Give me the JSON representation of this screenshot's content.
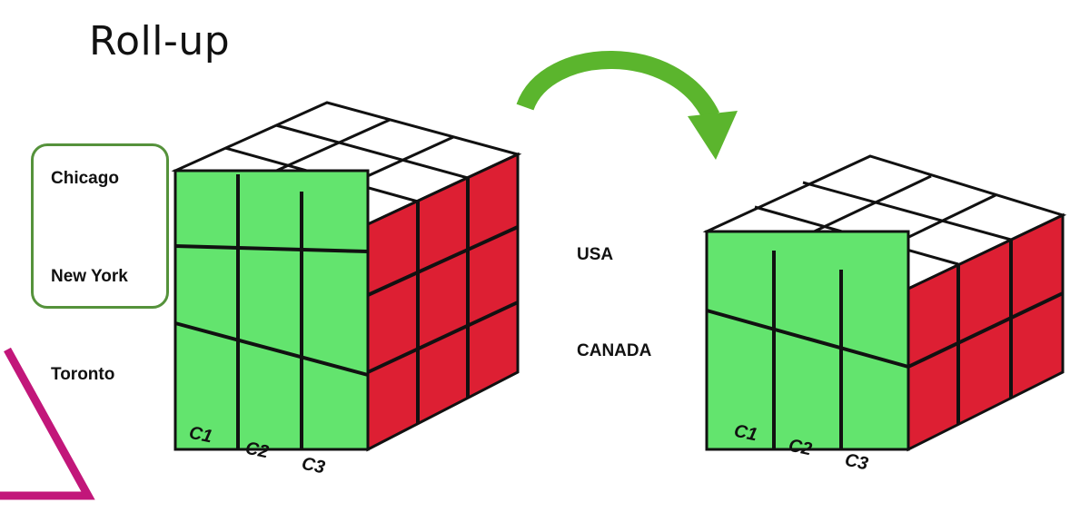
{
  "title": "Roll-up",
  "cities": [
    "Chicago",
    "New York",
    "Toronto"
  ],
  "countries": [
    "USA",
    "CANADA"
  ],
  "columns": [
    "C1",
    "C2",
    "C3"
  ],
  "colors": {
    "front_face": "#63e46e",
    "side_face": "#dd1f33",
    "top_face": "#ffffff",
    "arrow": "#5bb52d",
    "city_box_border": "#55923b",
    "corner_mark": "#c2177a"
  }
}
